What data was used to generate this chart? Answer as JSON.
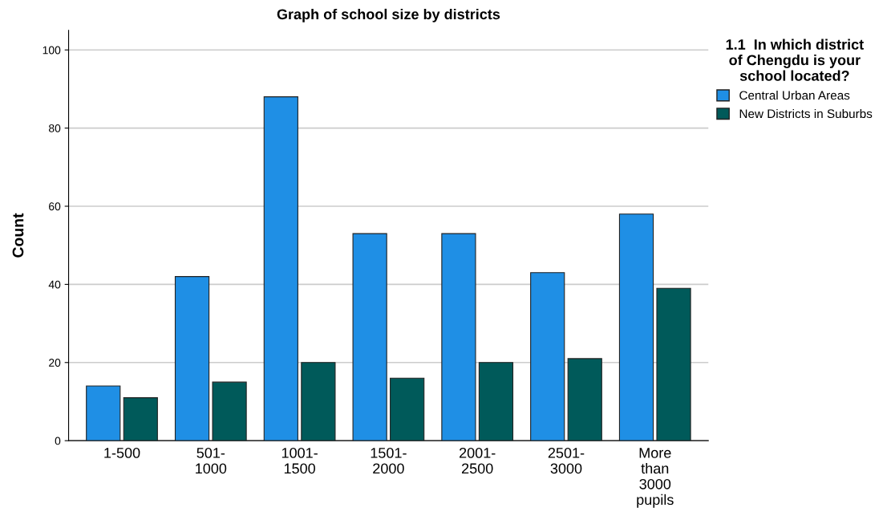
{
  "chart_data": {
    "type": "bar",
    "title": "Graph of school size by districts",
    "ylabel": "Count",
    "legend_title": "1.1  In which district\nof Chengdu is your\nschool located?",
    "categories": [
      "1-500",
      "501-\n1000",
      "1001-\n1500",
      "1501-\n2000",
      "2001-\n2500",
      "2501-\n3000",
      "More\nthan\n3000\npupils"
    ],
    "series": [
      {
        "name": "Central Urban Areas",
        "color": "#1f8fe5",
        "values": [
          14,
          42,
          88,
          53,
          53,
          43,
          58
        ]
      },
      {
        "name": "New Districts in Suburbs",
        "color": "#005a5a",
        "values": [
          11,
          15,
          20,
          16,
          20,
          21,
          39
        ]
      }
    ],
    "ylim": [
      0,
      105
    ],
    "yticks": [
      0,
      20,
      40,
      60,
      80,
      100
    ],
    "grid": "y",
    "legend": "top right"
  }
}
